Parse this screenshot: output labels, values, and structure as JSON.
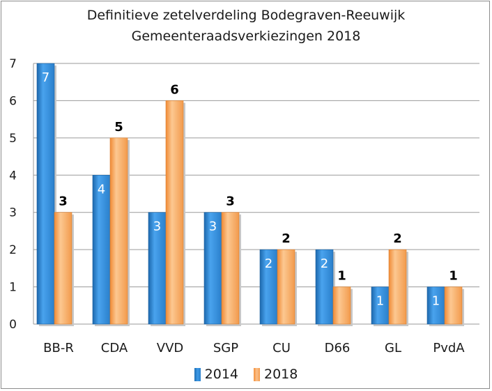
{
  "chart_data": {
    "type": "bar",
    "title": "Definitieve zetelverdeling Bodegraven-Reeuwijk",
    "subtitle": "Gemeenteraadsverkiezingen 2018",
    "categories": [
      "BB-R",
      "CDA",
      "VVD",
      "SGP",
      "CU",
      "D66",
      "GL",
      "PvdA"
    ],
    "series": [
      {
        "name": "2014",
        "values": [
          7,
          4,
          3,
          3,
          2,
          2,
          1,
          1
        ],
        "color": "#2a80cc",
        "label_color": "#ffffff"
      },
      {
        "name": "2018",
        "values": [
          3,
          5,
          6,
          3,
          2,
          1,
          2,
          1
        ],
        "color": "#f5a15b",
        "label_color": "#000000"
      }
    ],
    "y_ticks": [
      "0",
      "1",
      "2",
      "3",
      "4",
      "5",
      "6",
      "7"
    ],
    "ylim": [
      0,
      7
    ],
    "grid": true,
    "legend_position": "bottom"
  }
}
